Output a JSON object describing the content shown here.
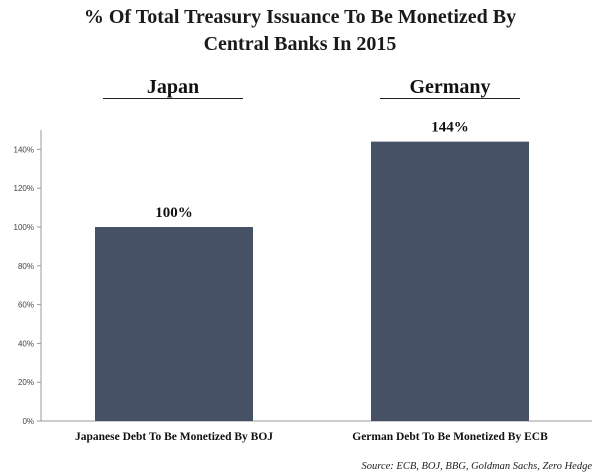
{
  "title_line1": "% Of  Total Treasury Issuance To Be Monetized By",
  "title_line2": "Central Banks In 2015",
  "groups": [
    "Japan",
    "Germany"
  ],
  "source": "Source: ECB, BOJ, BBG, Goldman Sachs, Zero Hedge",
  "colors": {
    "bar": "#475166",
    "axis": "#999999"
  },
  "chart_data": {
    "type": "bar",
    "title": "% Of Total Treasury Issuance To Be Monetized By Central Banks In 2015",
    "categories": [
      "Japanese Debt To Be Monetized By BOJ",
      "German Debt To Be Monetized By ECB"
    ],
    "values": [
      100,
      144
    ],
    "data_labels": [
      "100%",
      "144%"
    ],
    "yticks": [
      0,
      20,
      40,
      60,
      80,
      100,
      120,
      140
    ],
    "ytick_labels": [
      "0%",
      "20%",
      "40%",
      "60%",
      "80%",
      "100%",
      "120%",
      "140%"
    ],
    "ylim": [
      0,
      150
    ],
    "xlabel": "",
    "ylabel": "",
    "grid": false
  }
}
